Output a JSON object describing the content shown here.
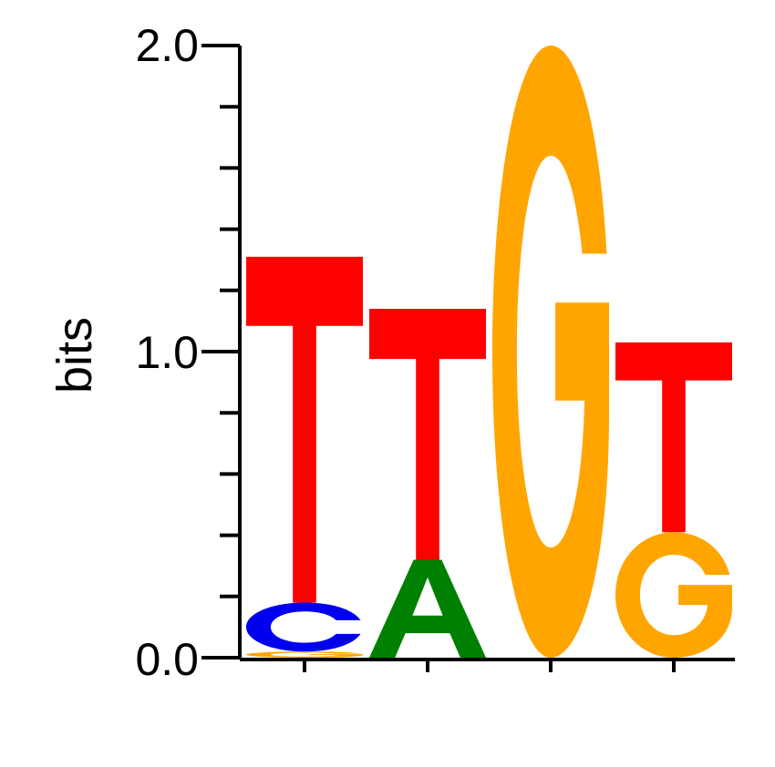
{
  "chart_data": {
    "type": "sequence-logo",
    "ylabel": "bits",
    "ylim": [
      0,
      2.0
    ],
    "yticks": [
      "0.0",
      "1.0",
      "2.0"
    ],
    "colors": {
      "A": "#008000",
      "C": "#0000ee",
      "G": "#ffa500",
      "T": "#ff0000"
    },
    "positions": [
      {
        "stack": [
          {
            "letter": "G",
            "bits": 0.02
          },
          {
            "letter": "C",
            "bits": 0.16
          },
          {
            "letter": "T",
            "bits": 1.13
          }
        ]
      },
      {
        "stack": [
          {
            "letter": "A",
            "bits": 0.32
          },
          {
            "letter": "T",
            "bits": 0.82
          }
        ]
      },
      {
        "stack": [
          {
            "letter": "G",
            "bits": 2.0
          }
        ]
      },
      {
        "stack": [
          {
            "letter": "G",
            "bits": 0.41
          },
          {
            "letter": "T",
            "bits": 0.62
          }
        ]
      }
    ]
  }
}
